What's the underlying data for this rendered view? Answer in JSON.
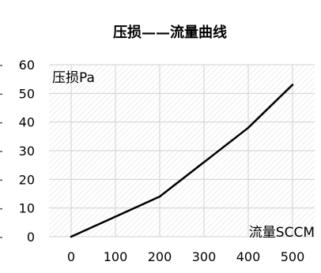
{
  "chart_data": {
    "type": "line",
    "title": "压损——流量曲线",
    "xlabel": "流量SCCM",
    "ylabel": "压损Pa",
    "x": [
      0,
      200,
      400,
      500
    ],
    "xticks": [
      "0",
      "100",
      "200",
      "300",
      "400",
      "500"
    ],
    "yticks": [
      "0",
      "10",
      "20",
      "30",
      "40",
      "50",
      "60"
    ],
    "xlim": [
      -50,
      550
    ],
    "ylim": [
      0,
      60
    ],
    "grid": true,
    "series": [
      {
        "values": [
          0,
          14,
          38,
          53
        ]
      }
    ],
    "colors": {
      "line": "#000000",
      "grid": "#d0d0d0",
      "text": "#000000"
    }
  }
}
